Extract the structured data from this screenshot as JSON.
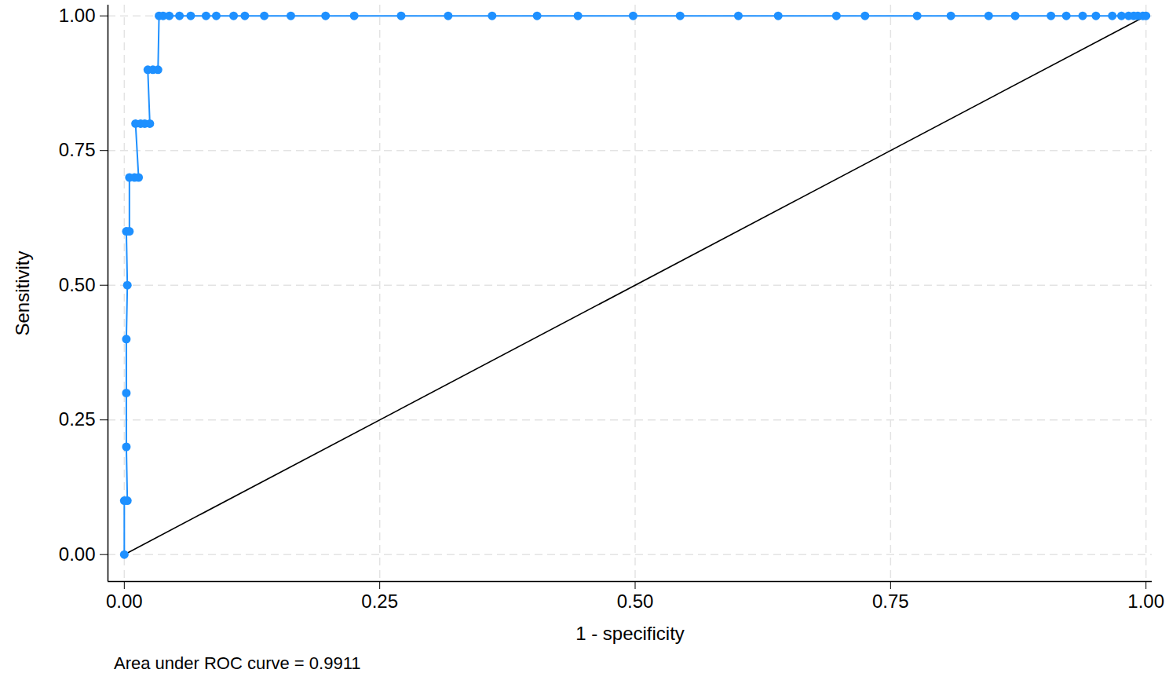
{
  "chart_data": {
    "type": "line",
    "x_label": "1 - specificity",
    "y_label": "Sensitivity",
    "caption": "Area under ROC curve = 0.9911",
    "xlim": [
      -0.016,
      1.006
    ],
    "ylim": [
      -0.05,
      1.02
    ],
    "xticks": [
      {
        "value": 0,
        "label": "0.00"
      },
      {
        "value": 0.25,
        "label": "0.25"
      },
      {
        "value": 0.5,
        "label": "0.50"
      },
      {
        "value": 0.75,
        "label": "0.75"
      },
      {
        "value": 1,
        "label": "1.00"
      }
    ],
    "yticks": [
      {
        "value": 0,
        "label": "0.00"
      },
      {
        "value": 0.25,
        "label": "0.25"
      },
      {
        "value": 0.5,
        "label": "0.50"
      },
      {
        "value": 0.75,
        "label": "0.75"
      },
      {
        "value": 1,
        "label": "1.00"
      }
    ],
    "grid": true,
    "series": [
      {
        "color": "#1e90ff",
        "marker": "circle",
        "line_style": "solid",
        "x": [
          0,
          0,
          0.003,
          0.002,
          0.002,
          0.002,
          0.003,
          0.002,
          0.005,
          0.005,
          0.01,
          0.014,
          0.011,
          0.016,
          0.02,
          0.025,
          0.023,
          0.028,
          0.033,
          0.034,
          0.038,
          0.044,
          0.054,
          0.065,
          0.08,
          0.09,
          0.107,
          0.118,
          0.137,
          0.163,
          0.197,
          0.225,
          0.271,
          0.317,
          0.36,
          0.404,
          0.444,
          0.498,
          0.544,
          0.601,
          0.64,
          0.697,
          0.725,
          0.776,
          0.809,
          0.846,
          0.872,
          0.907,
          0.922,
          0.938,
          0.951,
          0.967,
          0.976,
          0.983,
          0.988,
          0.992,
          0.997,
          1.0
        ],
        "values": [
          0,
          0.1,
          0.1,
          0.2,
          0.3,
          0.4,
          0.5,
          0.6,
          0.6,
          0.7,
          0.7,
          0.7,
          0.8,
          0.8,
          0.8,
          0.8,
          0.9,
          0.9,
          0.9,
          1.0,
          1.0,
          1.0,
          1.0,
          1.0,
          1.0,
          1.0,
          1.0,
          1.0,
          1.0,
          1.0,
          1.0,
          1.0,
          1.0,
          1.0,
          1.0,
          1.0,
          1.0,
          1.0,
          1.0,
          1.0,
          1.0,
          1.0,
          1.0,
          1.0,
          1.0,
          1.0,
          1.0,
          1.0,
          1.0,
          1.0,
          1.0,
          1.0,
          1.0,
          1.0,
          1.0,
          1.0,
          1.0,
          1.0
        ]
      },
      {
        "color": "#000000",
        "marker": "none",
        "line_style": "solid",
        "x": [
          0,
          1
        ],
        "values": [
          0,
          1
        ]
      }
    ]
  }
}
